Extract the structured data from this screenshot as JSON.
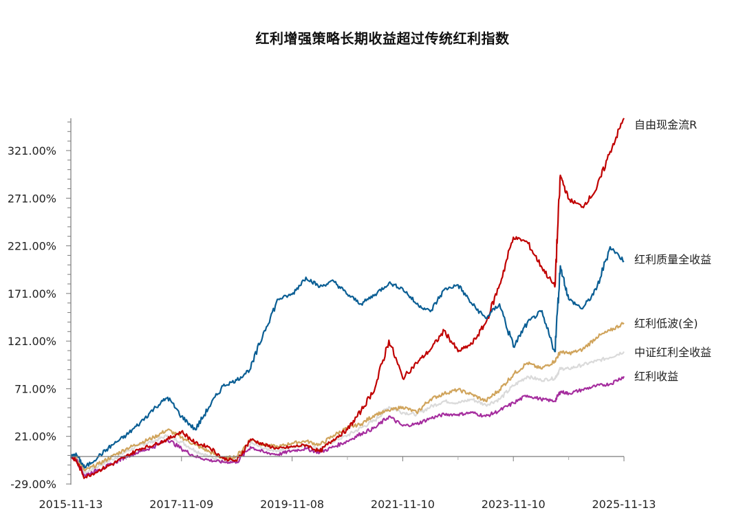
{
  "chart_data": {
    "type": "line",
    "title": "红利增强策略长期收益超过传统红利指数",
    "xlabel": "",
    "ylabel": "",
    "ylim": [
      -29,
      355
    ],
    "y_ticks": [
      "321.00%",
      "271.00%",
      "221.00%",
      "171.00%",
      "121.00%",
      "71.00%",
      "21.00%",
      "-29.00%"
    ],
    "y_tick_values": [
      321,
      271,
      221,
      171,
      121,
      71,
      21,
      -29
    ],
    "x_ticks": [
      "2015-11-13",
      "2017-11-09",
      "2019-11-08",
      "2021-11-10",
      "2023-11-10",
      "2025-11-13"
    ],
    "x_range": [
      0,
      10
    ],
    "grid": false,
    "legend_position": "right-inline-labels",
    "x": [
      0,
      0.1,
      0.25,
      0.5,
      0.75,
      1.0,
      1.25,
      1.5,
      1.75,
      2.0,
      2.25,
      2.5,
      2.75,
      3.0,
      3.25,
      3.5,
      3.75,
      4.0,
      4.25,
      4.5,
      4.75,
      5.0,
      5.25,
      5.5,
      5.75,
      6.0,
      6.25,
      6.5,
      6.75,
      7.0,
      7.25,
      7.5,
      7.75,
      8.0,
      8.25,
      8.5,
      8.75,
      8.85,
      9.0,
      9.25,
      9.5,
      9.75,
      10.0
    ],
    "series": [
      {
        "name": "自由现金流R",
        "color": "#C00000",
        "values": [
          0,
          -5,
          -22,
          -15,
          -8,
          0,
          8,
          12,
          18,
          26,
          14,
          10,
          -2,
          -5,
          18,
          12,
          8,
          10,
          12,
          5,
          18,
          28,
          48,
          72,
          122,
          82,
          98,
          112,
          132,
          110,
          118,
          140,
          180,
          230,
          225,
          200,
          178,
          295,
          270,
          262,
          280,
          320,
          355
        ]
      },
      {
        "name": "红利质量全收益",
        "color": "#0A5E94",
        "values": [
          0,
          2,
          -12,
          0,
          12,
          22,
          35,
          50,
          62,
          42,
          28,
          52,
          74,
          80,
          92,
          132,
          165,
          170,
          188,
          178,
          184,
          170,
          160,
          170,
          182,
          176,
          160,
          152,
          175,
          180,
          160,
          145,
          160,
          115,
          140,
          152,
          110,
          200,
          165,
          155,
          175,
          220,
          205
        ]
      },
      {
        "name": "红利低波(全)",
        "color": "#D0A45C",
        "values": [
          0,
          -2,
          -15,
          -8,
          0,
          8,
          14,
          20,
          28,
          20,
          12,
          5,
          -2,
          0,
          18,
          12,
          10,
          14,
          16,
          12,
          22,
          30,
          34,
          44,
          48,
          52,
          46,
          60,
          66,
          70,
          65,
          58,
          70,
          86,
          98,
          92,
          100,
          110,
          108,
          112,
          125,
          132,
          140
        ]
      },
      {
        "name": "中证红利全收益",
        "color": "#DADADA",
        "values": [
          0,
          -1,
          -18,
          -10,
          -3,
          5,
          12,
          16,
          22,
          15,
          6,
          0,
          -5,
          -4,
          14,
          8,
          6,
          10,
          12,
          8,
          16,
          22,
          30,
          38,
          52,
          46,
          44,
          52,
          58,
          56,
          60,
          54,
          60,
          74,
          84,
          80,
          82,
          92,
          92,
          96,
          100,
          104,
          110
        ]
      },
      {
        "name": "红利收益",
        "color": "#A52D9E",
        "values": [
          0,
          -4,
          -20,
          -14,
          -8,
          0,
          5,
          10,
          18,
          8,
          0,
          -4,
          -6,
          -6,
          10,
          4,
          2,
          6,
          8,
          4,
          10,
          16,
          24,
          30,
          42,
          32,
          34,
          40,
          44,
          44,
          46,
          42,
          48,
          56,
          64,
          60,
          58,
          68,
          66,
          70,
          74,
          76,
          84
        ]
      }
    ]
  },
  "labels": {
    "title": "红利增强策略长期收益超过传统红利指数",
    "series_labels": [
      "自由现金流R",
      "红利质量全收益",
      "红利低波(全)",
      "中证红利全收益",
      "红利收益"
    ]
  }
}
